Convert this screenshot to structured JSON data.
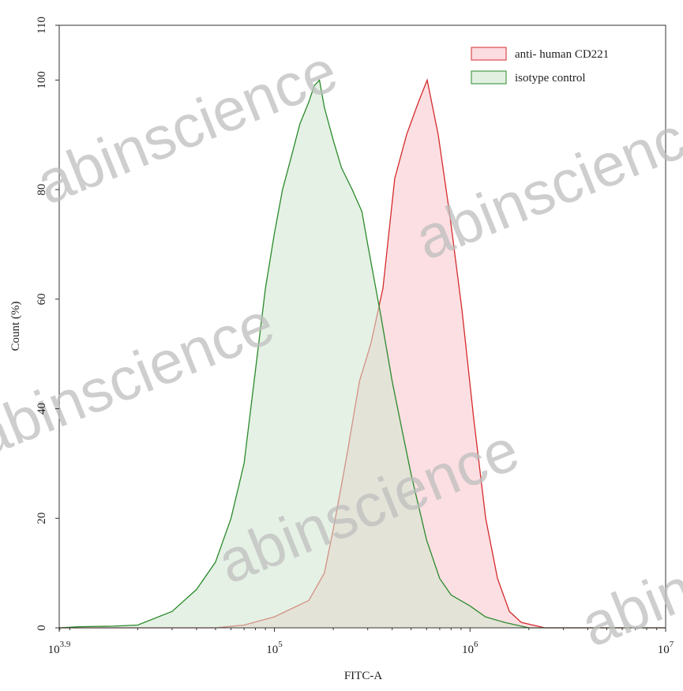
{
  "chart_data": {
    "type": "histogram-overlay",
    "watermark": "abinscience",
    "xlabel": "FITC-A",
    "ylabel": "Count (%)",
    "xscale": "log",
    "xlim": [
      7943,
      10000000
    ],
    "ylim": [
      0,
      110
    ],
    "xticks": [
      {
        "value": 7943,
        "label": "10",
        "exponent": "3.9"
      },
      {
        "value": 100000,
        "label": "10",
        "exponent": "5"
      },
      {
        "value": 1000000,
        "label": "10",
        "exponent": "6"
      },
      {
        "value": 10000000,
        "label": "10",
        "exponent": "7"
      }
    ],
    "yticks": [
      0,
      20,
      40,
      60,
      80,
      100,
      110
    ],
    "legend": "top-right",
    "series": [
      {
        "name": "anti- human CD221",
        "color": "#d42a2a",
        "fill": "#f9c4cc",
        "x": [
          7943,
          30000,
          50000,
          70000,
          100000,
          150000,
          180000,
          200000,
          220000,
          236000,
          272000,
          312000,
          359000,
          412000,
          474000,
          545000,
          604000,
          688000,
          791000,
          910000,
          1046000,
          1203000,
          1383000,
          1589000,
          1828000,
          2415000,
          10000000
        ],
        "values": [
          0,
          0,
          0,
          0.5,
          2,
          5,
          10,
          18,
          26,
          32,
          45,
          52,
          62,
          82,
          90,
          96,
          100,
          90,
          75,
          58,
          38,
          20,
          9,
          3,
          1,
          0,
          0
        ]
      },
      {
        "name": "isotype control",
        "color": "#2a8a2a",
        "fill": "#cfe6cf",
        "x": [
          7943,
          10000,
          15000,
          20000,
          30000,
          40000,
          50000,
          60000,
          70000,
          80000,
          90000,
          100000,
          110000,
          120000,
          135000,
          150000,
          160000,
          170000,
          180000,
          200000,
          220000,
          250000,
          280000,
          300000,
          350000,
          400000,
          450000,
          500000,
          600000,
          700000,
          800000,
          1000000,
          1200000,
          1500000,
          2000000,
          5000000,
          10000000
        ],
        "values": [
          0,
          0.2,
          0.3,
          0.5,
          3,
          7,
          12,
          20,
          30,
          47,
          62,
          72,
          80,
          85,
          92,
          96,
          99,
          100,
          95,
          89,
          84,
          80,
          76,
          70,
          57,
          45,
          36,
          28,
          16,
          9,
          6,
          4,
          2,
          1,
          0,
          0,
          0
        ]
      }
    ]
  }
}
